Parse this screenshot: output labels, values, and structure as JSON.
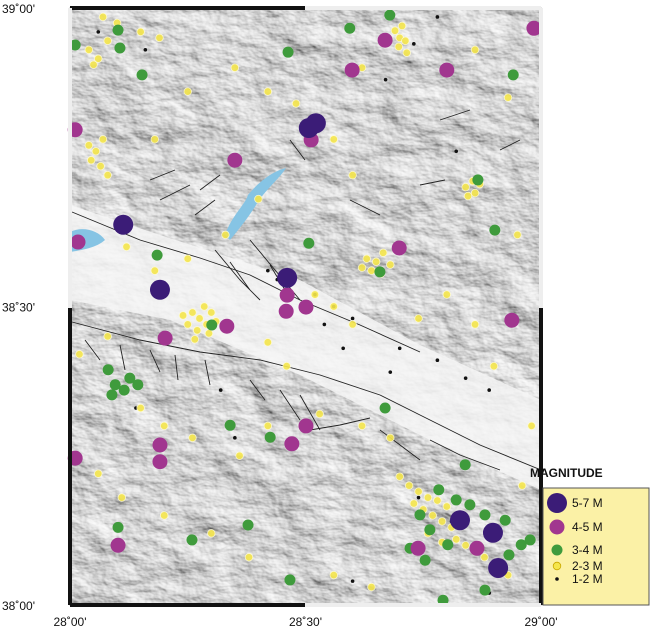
{
  "chart_data": {
    "type": "scatter",
    "xlim": [
      28,
      29
    ],
    "ylim": [
      38,
      39
    ],
    "xticks": [
      {
        "value": 28,
        "label": "28˚00'"
      },
      {
        "value": 28.5,
        "label": "28˚30'"
      },
      {
        "value": 29,
        "label": "29˚00'"
      }
    ],
    "yticks": [
      {
        "value": 38,
        "label": "38˚00'"
      },
      {
        "value": 38.5,
        "label": "38˚30'"
      },
      {
        "value": 39,
        "label": "39˚00'"
      }
    ],
    "legend_title": "MAGNITUDE",
    "series": [
      {
        "name": "5-7 M",
        "color": "#3b1c77",
        "x": [
          28.507,
          28.522,
          28.113,
          28.191,
          28.461,
          28.828,
          28.898,
          28.909
        ],
        "y": [
          38.799,
          38.807,
          38.637,
          38.528,
          38.548,
          38.142,
          38.121,
          38.062
        ]
      },
      {
        "name": "4-5 M",
        "color": "#a1368f",
        "x": [
          28.669,
          28.599,
          28.8,
          28.35,
          28.011,
          28.017,
          28.699,
          28.461,
          28.501,
          28.333,
          28.202,
          28.938,
          28.191,
          28.191,
          28.471,
          28.501,
          28.011,
          28.739,
          28.864,
          28.102,
          28.459,
          28.985,
          28.512
        ],
        "y": [
          38.946,
          38.896,
          38.896,
          38.745,
          38.796,
          38.608,
          38.598,
          38.519,
          38.499,
          38.467,
          38.447,
          38.477,
          38.268,
          38.24,
          38.27,
          38.3,
          38.246,
          38.095,
          38.095,
          38.1,
          38.492,
          38.966,
          38.779
        ]
      },
      {
        "name": "3-4 M",
        "color": "#3f9b3c",
        "x": [
          28.011,
          28.102,
          28.153,
          28.106,
          28.463,
          28.594,
          28.679,
          28.941,
          28.866,
          28.507,
          28.185,
          28.658,
          28.301,
          28.081,
          28.096,
          28.127,
          28.115,
          28.144,
          28.089,
          28.34,
          28.425,
          28.669,
          28.839,
          28.783,
          28.849,
          28.881,
          28.743,
          28.764,
          28.802,
          28.924,
          28.958,
          28.932,
          28.722,
          28.754,
          28.102,
          28.259,
          28.378,
          28.467,
          28.792,
          28.881,
          28.902,
          28.977,
          28.82
        ],
        "y": [
          38.938,
          38.963,
          38.888,
          38.933,
          38.926,
          38.966,
          38.988,
          38.888,
          38.712,
          38.606,
          38.586,
          38.558,
          38.469,
          38.394,
          38.369,
          38.38,
          38.36,
          38.369,
          38.352,
          38.301,
          38.281,
          38.33,
          38.235,
          38.193,
          38.168,
          38.151,
          38.151,
          38.126,
          38.101,
          38.142,
          38.101,
          38.084,
          38.095,
          38.075,
          38.13,
          38.109,
          38.134,
          38.042,
          38.008,
          38.025,
          38.628,
          38.109,
          38.176
        ]
      },
      {
        "name": "2-3 M",
        "color": "#f5e64c",
        "x": [
          28.69,
          28.7,
          28.705,
          28.712,
          28.698,
          28.715,
          28.04,
          28.06,
          28.08,
          28.05,
          28.1,
          28.07,
          28.15,
          28.19,
          28.04,
          28.055,
          28.07,
          28.045,
          28.065,
          28.08,
          28.26,
          28.275,
          28.29,
          28.25,
          28.27,
          28.3,
          28.285,
          28.24,
          28.31,
          28.265,
          28.295,
          28.63,
          28.65,
          28.665,
          28.64,
          28.66,
          28.62,
          28.68,
          28.84,
          28.855,
          28.86,
          28.845,
          28.87,
          28.72,
          28.74,
          28.76,
          28.78,
          28.8,
          28.75,
          28.77,
          28.79,
          28.81,
          28.73,
          28.76,
          28.82,
          28.84,
          28.86,
          28.79,
          28.88,
          28.9,
          28.93,
          28.7,
          28.35,
          28.42,
          28.48,
          28.56,
          28.6,
          28.4,
          28.33,
          28.25,
          28.18,
          28.12,
          28.52,
          28.56,
          28.6,
          28.74,
          28.8,
          28.86,
          28.9,
          28.15,
          28.2,
          28.26,
          28.36,
          28.42,
          28.53,
          28.62,
          28.68,
          28.06,
          28.11,
          28.2,
          28.3,
          28.38,
          28.56,
          28.64,
          28.96,
          28.98,
          28.95,
          28.93,
          28.86,
          28.62,
          28.25,
          28.18,
          28.42,
          28.46,
          28.02,
          28.08
        ],
        "y": [
          38.962,
          38.95,
          38.97,
          38.945,
          38.935,
          38.925,
          38.93,
          38.915,
          38.945,
          38.905,
          38.975,
          38.985,
          38.96,
          38.95,
          38.77,
          38.76,
          38.78,
          38.745,
          38.735,
          38.72,
          38.49,
          38.48,
          38.47,
          38.47,
          38.46,
          38.49,
          38.5,
          38.485,
          38.475,
          38.445,
          38.455,
          38.58,
          38.575,
          38.59,
          38.56,
          38.555,
          38.565,
          38.57,
          38.7,
          38.71,
          38.69,
          38.685,
          38.705,
          38.2,
          38.19,
          38.18,
          38.175,
          38.165,
          38.16,
          38.15,
          38.14,
          38.13,
          38.17,
          38.12,
          38.11,
          38.1,
          38.09,
          38.105,
          38.08,
          38.06,
          38.05,
          38.215,
          38.9,
          38.86,
          38.84,
          38.78,
          38.72,
          38.68,
          38.62,
          38.58,
          38.56,
          38.6,
          38.52,
          38.5,
          38.47,
          38.48,
          38.52,
          38.47,
          38.4,
          38.33,
          38.3,
          38.28,
          38.25,
          38.3,
          38.32,
          38.3,
          38.28,
          38.22,
          38.18,
          38.15,
          38.12,
          38.08,
          38.05,
          38.03,
          38.2,
          38.3,
          38.62,
          38.85,
          38.93,
          38.9,
          38.86,
          38.78,
          38.44,
          38.4,
          38.42,
          38.45
        ]
      },
      {
        "name": "1-2 M",
        "color": "#111111",
        "x": [
          28.73,
          28.67,
          28.78,
          28.06,
          28.16,
          28.82,
          28.42,
          28.44,
          28.52,
          28.56,
          28.6,
          28.54,
          28.58,
          28.68,
          28.78,
          28.84,
          28.89,
          28.32,
          28.14,
          28.35,
          28.74,
          28.81,
          28.6,
          28.89,
          28.7
        ],
        "y": [
          38.94,
          38.88,
          38.985,
          38.96,
          38.93,
          38.76,
          38.56,
          38.545,
          38.52,
          38.5,
          38.48,
          38.47,
          38.43,
          38.39,
          38.41,
          38.38,
          38.36,
          38.36,
          38.33,
          38.28,
          38.18,
          38.14,
          38.04,
          38.02,
          38.43
        ]
      }
    ]
  }
}
